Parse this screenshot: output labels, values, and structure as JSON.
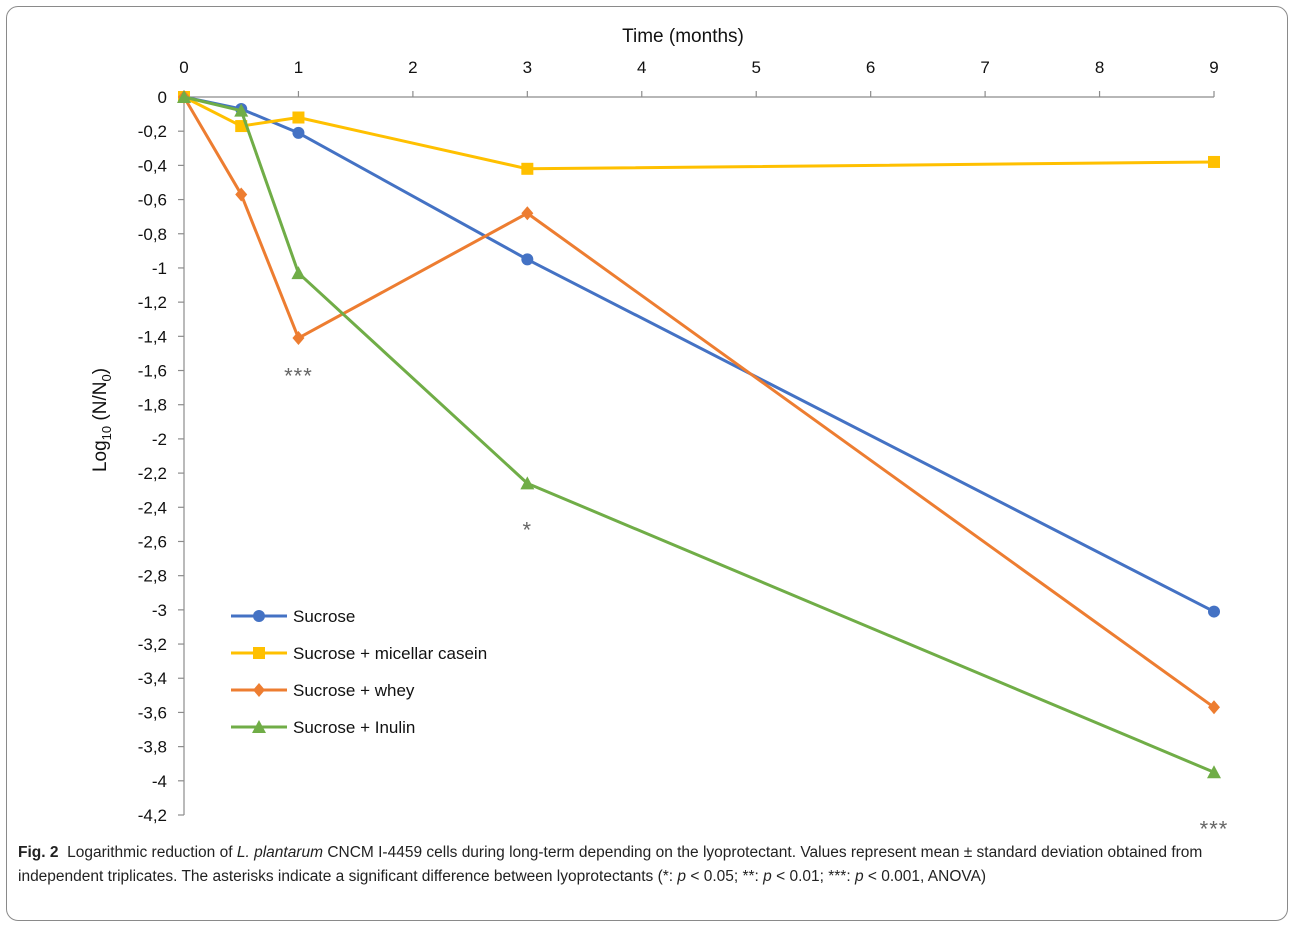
{
  "chart_data": {
    "type": "line",
    "xlabel": "Time (months)",
    "ylabel_main": "Log",
    "ylabel_sub": "10",
    "ylabel_rest": " (N/N",
    "ylabel_sub2": "0",
    "ylabel_close": ")",
    "x_ticks": [
      "0",
      "1",
      "2",
      "3",
      "4",
      "5",
      "6",
      "7",
      "8",
      "9"
    ],
    "y_ticks": [
      "0",
      "-0,2",
      "-0,4",
      "-0,6",
      "-0,8",
      "-1",
      "-1,2",
      "-1,4",
      "-1,6",
      "-1,8",
      "-2",
      "-2,2",
      "-2,4",
      "-2,6",
      "-2,8",
      "-3",
      "-3,2",
      "-3,4",
      "-3,6",
      "-3,8",
      "-4",
      "-4,2"
    ],
    "xlim": [
      0,
      9
    ],
    "ylim": [
      -4.2,
      0
    ],
    "legend_position": "bottom-left",
    "series": [
      {
        "name": "Sucrose",
        "color": "#4472C4",
        "marker": "circle",
        "x": [
          0,
          0.5,
          1,
          3,
          9
        ],
        "y": [
          0,
          -0.07,
          -0.21,
          -0.95,
          -3.01
        ]
      },
      {
        "name": "Sucrose + micellar casein",
        "color": "#FFC000",
        "marker": "square",
        "x": [
          0,
          0.5,
          1,
          3,
          9
        ],
        "y": [
          0,
          -0.17,
          -0.12,
          -0.42,
          -0.38
        ]
      },
      {
        "name": "Sucrose + whey",
        "color": "#ED7D31",
        "marker": "diamond",
        "x": [
          0,
          0.5,
          1,
          3,
          9
        ],
        "y": [
          0,
          -0.57,
          -1.41,
          -0.68,
          -3.57
        ]
      },
      {
        "name": "Sucrose + Inulin",
        "color": "#70AD47",
        "marker": "triangle",
        "x": [
          0,
          0.5,
          1,
          3,
          9
        ],
        "y": [
          0,
          -0.08,
          -1.03,
          -2.26,
          -3.95
        ]
      }
    ],
    "annotations": [
      {
        "text": "***",
        "x": 1,
        "y": -1.63
      },
      {
        "text": "*",
        "x": 3,
        "y": -2.53
      },
      {
        "text": "***",
        "x": 9,
        "y": -4.28
      }
    ]
  },
  "caption": {
    "label": "Fig. 2",
    "part1": "Logarithmic reduction of ",
    "species": "L. plantarum",
    "part2": " CNCM I-4459 cells during long-term depending on the lyoprotectant. Values represent mean ± standard deviation obtained from independent triplicates. The asterisks indicate a significant difference between lyoprotectants (*: ",
    "p1": "p",
    "part3": " < 0.05; **: ",
    "p2": "p",
    "part4": " < 0.01; ***: ",
    "p3": "p",
    "part5": " < 0.001, ANOVA)"
  }
}
